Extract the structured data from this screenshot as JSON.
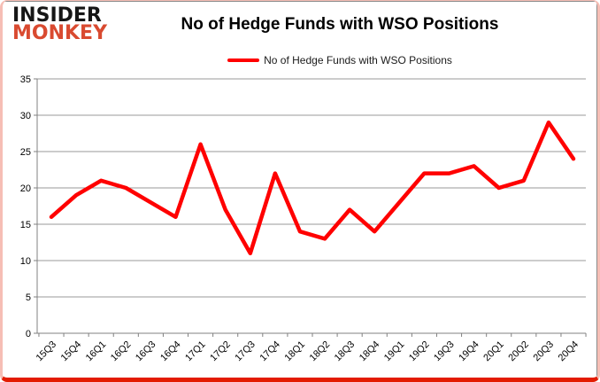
{
  "brand": {
    "line1": "INSIDER",
    "line2": "MONKEY",
    "line1_color": "#161616",
    "line2_color": "#d94a30"
  },
  "header": {
    "title": "No of Hedge Funds with WSO Positions"
  },
  "legend": {
    "label": "No of Hedge Funds with WSO Positions",
    "swatch_color": "#ff0000"
  },
  "chart_data": {
    "type": "line",
    "title": "No of Hedge Funds with WSO Positions",
    "categories": [
      "15Q3",
      "15Q4",
      "16Q1",
      "16Q2",
      "16Q3",
      "16Q4",
      "17Q1",
      "17Q2",
      "17Q3",
      "17Q4",
      "18Q1",
      "18Q2",
      "18Q3",
      "18Q4",
      "19Q1",
      "19Q2",
      "19Q3",
      "19Q4",
      "20Q1",
      "20Q2",
      "20Q3",
      "20Q4"
    ],
    "series": [
      {
        "name": "No of Hedge Funds with WSO Positions",
        "color": "#ff0000",
        "values": [
          16,
          19,
          21,
          20,
          18,
          16,
          26,
          17,
          11,
          22,
          14,
          13,
          17,
          14,
          18,
          22,
          22,
          23,
          20,
          21,
          29,
          24
        ]
      }
    ],
    "xlabel": "",
    "ylabel": "",
    "ylim": [
      0,
      35
    ],
    "yticks": [
      0,
      5,
      10,
      15,
      20,
      25,
      30,
      35
    ],
    "grid": "horizontal",
    "gridline_color": "#999999",
    "axis_color": "#808080",
    "tick_label_color": "#000000",
    "legend_position": "top-center"
  }
}
